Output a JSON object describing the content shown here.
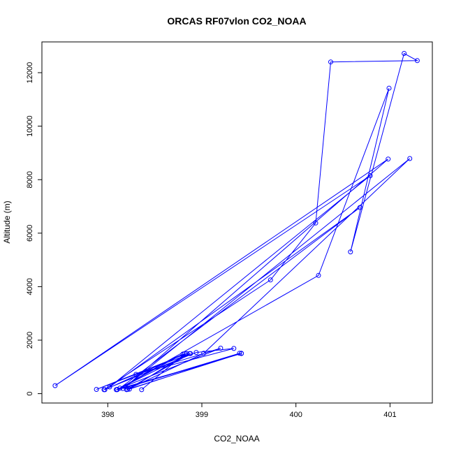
{
  "chart_data": {
    "type": "line",
    "title": "ORCAS RF07vlon CO2_NOAA",
    "xlabel": "CO2_NOAA",
    "ylabel": "Altitude (m)",
    "xlim": [
      397.3,
      401.45
    ],
    "ylim": [
      -350,
      13150
    ],
    "xticks": [
      398,
      399,
      400,
      401
    ],
    "yticks": [
      0,
      2000,
      4000,
      6000,
      8000,
      10000,
      12000
    ],
    "marker": "open-circle",
    "color": "#0000ff",
    "series": [
      {
        "x": [
          398.36,
          398.82,
          397.97,
          398.8,
          398.1,
          398.87,
          398.2,
          398.88,
          397.88,
          398.84,
          398.23,
          399.4,
          398.16,
          399.42,
          398.09,
          399.2,
          398.3,
          399.34,
          398.94,
          397.96,
          399.73,
          400.21,
          400.37,
          401.29,
          401.15,
          400.58,
          400.99,
          400.24,
          398.13,
          400.68,
          398.02,
          400.79,
          397.44,
          400.98,
          398.19,
          401.21,
          399.02,
          398.21,
          399.42,
          398.1
        ],
        "y": [
          150,
          1500,
          150,
          1480,
          160,
          1500,
          150,
          1500,
          160,
          1500,
          170,
          1510,
          190,
          1500,
          150,
          1700,
          720,
          1690,
          1540,
          150,
          4250,
          6380,
          12400,
          12450,
          12720,
          5300,
          11420,
          4420,
          210,
          6960,
          250,
          8150,
          300,
          8770,
          260,
          8790,
          1510,
          160,
          1510,
          150
        ]
      }
    ]
  }
}
